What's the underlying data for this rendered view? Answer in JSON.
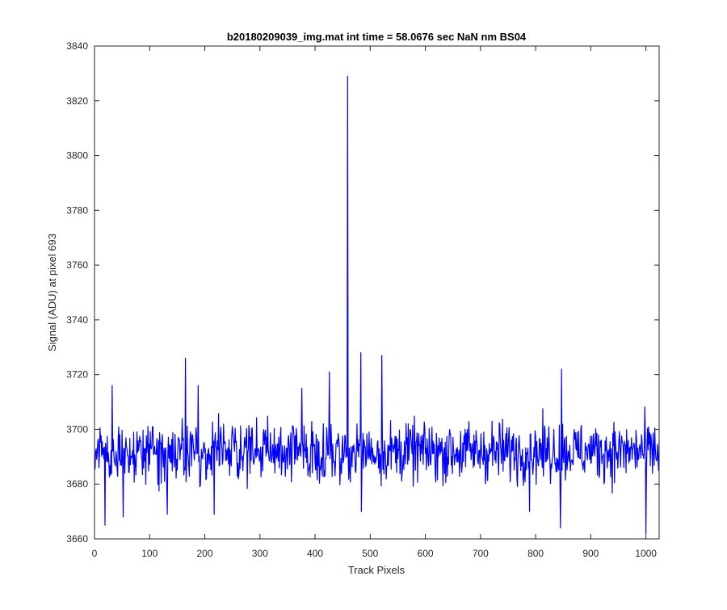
{
  "chart_data": {
    "type": "line",
    "title": "b20180209039_img.mat int time = 58.0676 sec  NaN nm BS04",
    "xlabel": "Track Pixels",
    "ylabel": "Signal (ADU) at pixel 693",
    "xlim": [
      0,
      1024
    ],
    "ylim": [
      3660,
      3840
    ],
    "xticks": [
      0,
      100,
      200,
      300,
      400,
      500,
      600,
      700,
      800,
      900,
      1000
    ],
    "yticks": [
      3660,
      3680,
      3700,
      3720,
      3740,
      3760,
      3780,
      3800,
      3820,
      3840
    ],
    "grid": false,
    "series": [
      {
        "color": "#0000ff",
        "baseline": 3692,
        "x_start": 1,
        "x_end": 1024,
        "noise_amplitude": 9,
        "peaks": [
          {
            "x": 459,
            "y": 3829
          },
          {
            "x": 165,
            "y": 3726
          },
          {
            "x": 188,
            "y": 3716
          },
          {
            "x": 376,
            "y": 3715
          },
          {
            "x": 426,
            "y": 3721
          },
          {
            "x": 483,
            "y": 3728
          },
          {
            "x": 521,
            "y": 3727
          },
          {
            "x": 847,
            "y": 3722
          },
          {
            "x": 32,
            "y": 3716
          }
        ],
        "dips": [
          {
            "x": 19,
            "y": 3665
          },
          {
            "x": 52,
            "y": 3668
          },
          {
            "x": 132,
            "y": 3669
          },
          {
            "x": 217,
            "y": 3669
          },
          {
            "x": 484,
            "y": 3670
          },
          {
            "x": 789,
            "y": 3670
          },
          {
            "x": 845,
            "y": 3664
          },
          {
            "x": 1000,
            "y": 3662
          }
        ]
      }
    ]
  }
}
